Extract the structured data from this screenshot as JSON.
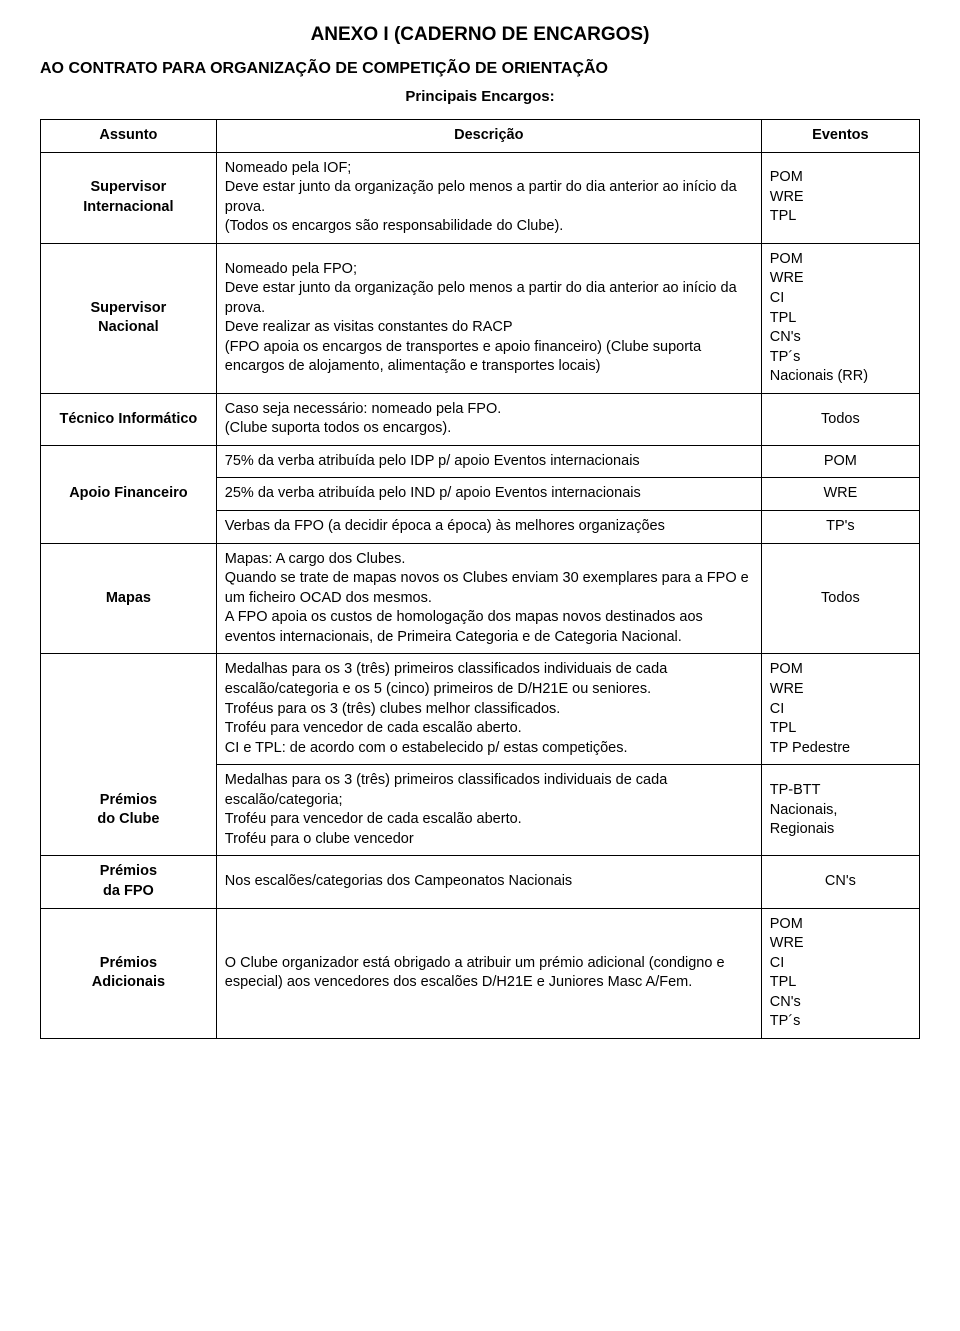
{
  "title": "ANEXO I (CADERNO DE ENCARGOS)",
  "subtitle": "AO CONTRATO PARA ORGANIZAÇÃO DE COMPETIÇÃO DE ORIENTAÇÃO",
  "subsubtitle": "Principais Encargos:",
  "header": {
    "assunto": "Assunto",
    "descricao": "Descrição",
    "eventos": "Eventos"
  },
  "rows": {
    "supervisor_int": {
      "assunto": "Supervisor\nInternacional",
      "desc": "Nomeado pela IOF;\nDeve estar junto da organização pelo menos a partir do dia anterior ao início da prova.\n(Todos os encargos são responsabilidade do Clube).",
      "evt": "POM\nWRE\nTPL"
    },
    "supervisor_nac": {
      "assunto": "Supervisor\nNacional",
      "desc": "Nomeado pela FPO;\nDeve estar junto da organização pelo menos a partir do dia anterior ao início da prova.\nDeve realizar as visitas constantes do RACP\n(FPO apoia os encargos de transportes e apoio financeiro) (Clube suporta encargos de alojamento, alimentação e transportes locais)",
      "evt": "POM\nWRE\nCI\nTPL\nCN's\nTP´s\nNacionais (RR)"
    },
    "tecnico": {
      "assunto": "Técnico Informático",
      "desc": "Caso seja necessário: nomeado pela FPO.\n(Clube suporta todos os encargos).",
      "evt": "Todos"
    },
    "apoio": {
      "assunto": "Apoio Financeiro",
      "d1": "75% da verba atribuída pelo IDP p/ apoio Eventos internacionais",
      "e1": "POM",
      "d2": "25% da verba atribuída pelo IND p/ apoio Eventos internacionais",
      "e2": "WRE",
      "d3": "Verbas da FPO (a decidir época a época) às melhores organizações",
      "e3": "TP's"
    },
    "mapas": {
      "assunto": "Mapas",
      "desc": "Mapas: A cargo dos Clubes.\nQuando se trate de mapas novos os Clubes enviam 30 exemplares para a FPO e um ficheiro OCAD dos mesmos.\nA FPO apoia os custos de homologação dos mapas novos destinados aos eventos internacionais, de Primeira Categoria e de Categoria Nacional.",
      "evt": "Todos"
    },
    "premios_clube": {
      "assunto": "Prémios\ndo Clube",
      "d1": "Medalhas para os 3 (três) primeiros classificados individuais de cada escalão/categoria e os 5 (cinco) primeiros de D/H21E ou seniores.\nTroféus para os 3 (três) clubes melhor classificados.\nTroféu para vencedor de cada escalão aberto.\nCI e TPL: de acordo com o estabelecido p/ estas competições.",
      "e1": "POM\nWRE\nCI\nTPL\nTP Pedestre",
      "d2": "Medalhas para os 3 (três) primeiros classificados individuais de cada escalão/categoria;\nTroféu para vencedor de cada escalão aberto.\nTroféu para o clube vencedor",
      "e2": "TP-BTT\nNacionais,\nRegionais"
    },
    "premios_fpo": {
      "assunto": "Prémios\nda FPO",
      "desc": "Nos escalões/categorias dos Campeonatos Nacionais",
      "evt": "CN's"
    },
    "premios_adic": {
      "assunto": "Prémios\nAdicionais",
      "desc": "O Clube organizador está obrigado a atribuir um prémio adicional (condigno e especial) aos vencedores dos escalões D/H21E e Juniores Masc A/Fem.",
      "evt": "POM\nWRE\nCI\nTPL\nCN's\nTP´s"
    }
  }
}
